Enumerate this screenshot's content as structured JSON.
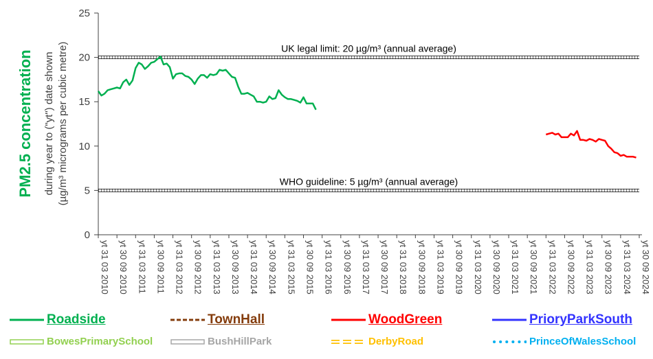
{
  "chart_data": {
    "type": "line",
    "ylabel_main": "PM2.5 concentration",
    "ylabel_sub1": "during year to (\"yt\") date shown",
    "ylabel_sub2": "(µg/m³ micrograms per cubic metre)",
    "ylim": [
      0,
      25
    ],
    "yticks": [
      0,
      5,
      10,
      15,
      20,
      25
    ],
    "grid": false,
    "legend_position": "bottom",
    "x_tick_labels": [
      "yt 31 03 2010",
      "yt 30 09 2010",
      "yt 31 03 2011",
      "yt 30 09 2011",
      "yt 31 03 2012",
      "yt 30 09 2012",
      "yt 31 03 2013",
      "yt 30 09 2013",
      "yt 31 03 2014",
      "yt 30 09 2014",
      "yt 31 03 2015",
      "yt 30 09 2015",
      "yt 31 03 2016",
      "yt 30 09 2016",
      "yt 31 03 2017",
      "yt 30 09 2017",
      "yt 31 03 2018",
      "yt 30 09 2018",
      "yt 31 03 2019",
      "yt 30 09 2019",
      "yt 31 03 2020",
      "yt 30 09 2020",
      "yt 31 03 2021",
      "yt 30 09 2021",
      "yt 31 03 2022",
      "yt 30 09 2022",
      "yt 31 03 2023",
      "yt 30 09 2023",
      "yt 31 03 2024",
      "yt 30 09 2024"
    ],
    "reference_lines": [
      {
        "value": 20,
        "label": "UK legal limit:  20 µg/m³ (annual average)"
      },
      {
        "value": 5,
        "label": "WHO guideline:  5 µg/m³ (annual average)"
      }
    ],
    "series": [
      {
        "name": "Roadside",
        "color": "#00b050",
        "style": "solid",
        "start_month": "2010-03",
        "values": [
          16.2,
          15.7,
          15.9,
          16.3,
          16.4,
          16.5,
          16.6,
          16.5,
          17.2,
          17.5,
          16.9,
          17.4,
          18.8,
          19.4,
          19.2,
          18.7,
          19.0,
          19.4,
          19.5,
          19.8,
          20.1,
          19.2,
          19.3,
          18.9,
          17.6,
          18.1,
          18.2,
          18.2,
          17.9,
          17.8,
          17.5,
          17.0,
          17.6,
          18.0,
          18.0,
          17.7,
          18.1,
          18.0,
          18.1,
          18.6,
          18.5,
          18.6,
          18.2,
          17.8,
          17.7,
          16.7,
          15.9,
          15.9,
          16.0,
          15.8,
          15.6,
          15.0,
          15.0,
          14.9,
          15.0,
          15.6,
          15.3,
          15.4,
          16.3,
          15.8,
          15.5,
          15.3,
          15.3,
          15.2,
          15.1,
          14.9,
          15.5,
          14.8,
          14.8,
          14.8,
          14.1
        ]
      },
      {
        "name": "TownHall",
        "color": "#843c0c",
        "style": "dashed",
        "values": []
      },
      {
        "name": "WoodGreen",
        "color": "#ff0000",
        "style": "solid",
        "start_month": "2022-03",
        "values": [
          11.3,
          11.4,
          11.5,
          11.3,
          11.4,
          11.0,
          11.0,
          11.0,
          11.4,
          11.2,
          11.7,
          10.7,
          10.7,
          10.6,
          10.8,
          10.7,
          10.5,
          10.8,
          10.7,
          10.6,
          10.0,
          9.7,
          9.3,
          9.2,
          8.9,
          9.0,
          8.8,
          8.8,
          8.8,
          8.7
        ]
      },
      {
        "name": "PrioryParkSouth",
        "color": "#3333ff",
        "style": "solid",
        "values": []
      },
      {
        "name": "BowesPrimarySchool",
        "color": "#92d050",
        "style": "double",
        "values": []
      },
      {
        "name": "BushHillPark",
        "color": "#a6a6a6",
        "style": "double",
        "values": []
      },
      {
        "name": "DerbyRoad",
        "color": "#ffc000",
        "style": "dash-double",
        "values": []
      },
      {
        "name": "PrinceOfWalesSchool",
        "color": "#00b0f0",
        "style": "dotted",
        "values": []
      }
    ]
  },
  "legend": {
    "row1": [
      {
        "label": "Roadside",
        "color": "#00b050"
      },
      {
        "label": "TownHall",
        "color": "#843c0c"
      },
      {
        "label": "WoodGreen",
        "color": "#ff0000"
      },
      {
        "label": "PrioryParkSouth",
        "color": "#3333ff"
      }
    ],
    "row2": [
      {
        "label": "BowesPrimarySchool",
        "color": "#92d050"
      },
      {
        "label": "BushHillPark",
        "color": "#a6a6a6"
      },
      {
        "label": "DerbyRoad",
        "color": "#ffc000"
      },
      {
        "label": "PrinceOfWalesSchool",
        "color": "#00b0f0"
      }
    ]
  }
}
